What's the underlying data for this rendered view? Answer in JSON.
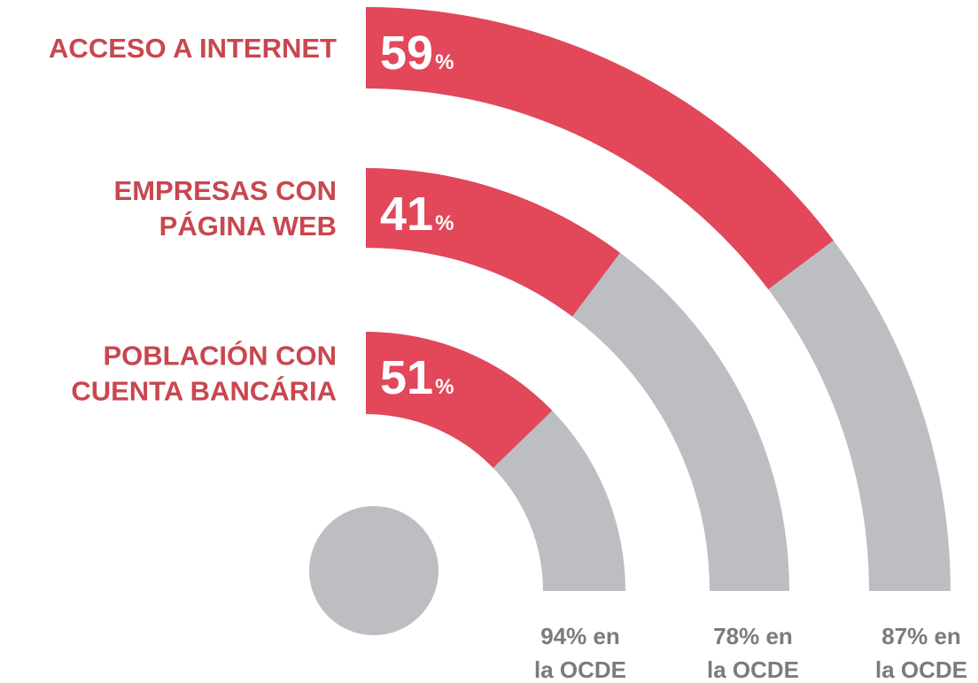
{
  "chart_data": {
    "type": "radial-arc",
    "categories": [
      [
        "ACCESO A INTERNET"
      ],
      [
        "EMPRESAS CON",
        "PÁGINA WEB"
      ],
      [
        "POBLACIÓN CON",
        "CUENTA BANCÁRIA"
      ]
    ],
    "values": [
      59,
      41,
      51
    ],
    "unit": "%",
    "ylim": [
      0,
      100
    ],
    "reference_labels": [
      [
        "87% en",
        "la OCDE"
      ],
      [
        "78% en",
        "la OCDE"
      ],
      [
        "94% en",
        "la OCDE"
      ]
    ],
    "color": "#e2475a",
    "track_color": "#bdbec2"
  }
}
